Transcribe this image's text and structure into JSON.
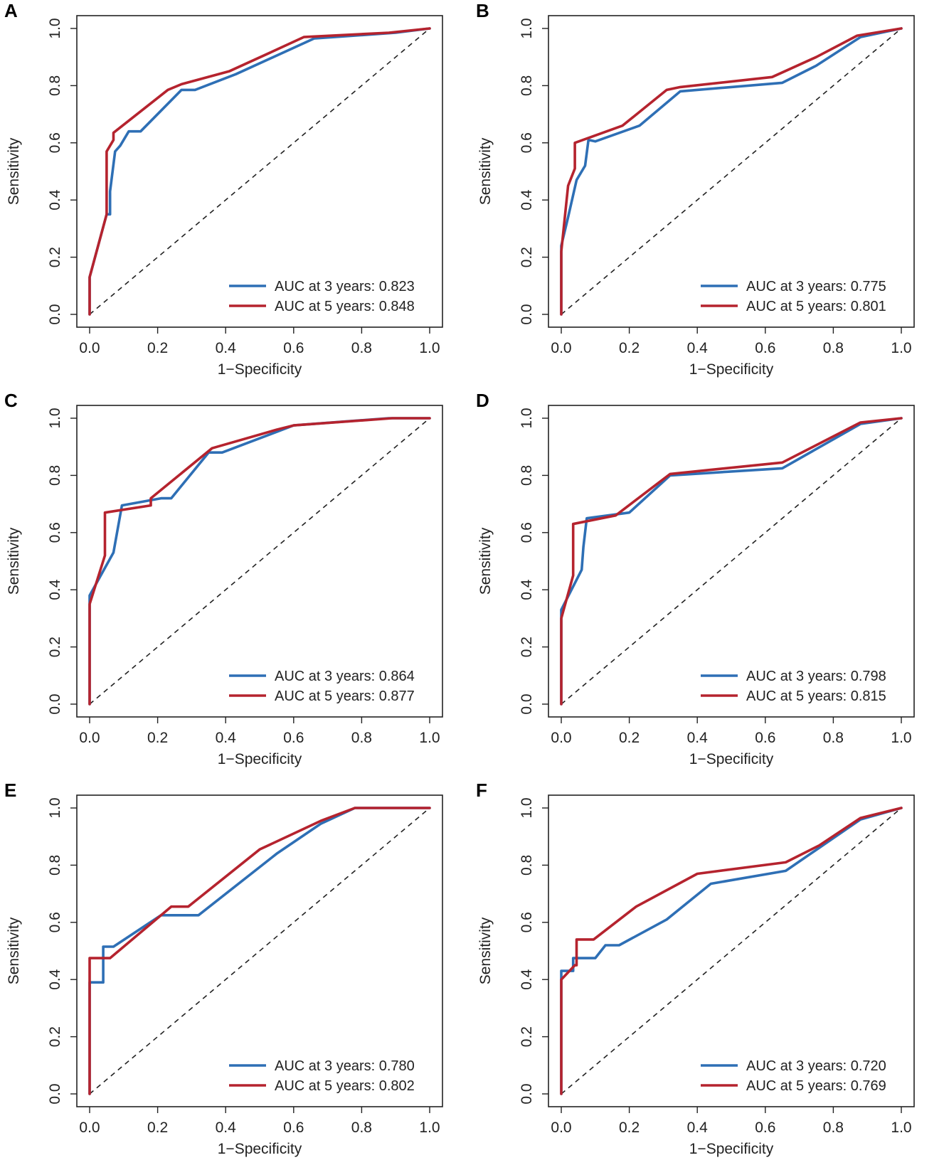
{
  "figure": {
    "panels_count": 6
  },
  "chart_data": [
    {
      "id": "A",
      "label": "A",
      "type": "line",
      "xlabel": "1−Specificity",
      "ylabel": "Sensitivity",
      "xlim": [
        0,
        1
      ],
      "ylim": [
        0,
        1
      ],
      "x_ticks": [
        "0.0",
        "0.2",
        "0.4",
        "0.6",
        "0.8",
        "1.0"
      ],
      "y_ticks": [
        "0.0",
        "0.2",
        "0.4",
        "0.6",
        "0.8",
        "1.0"
      ],
      "reference_line": true,
      "series": [
        {
          "name": "AUC at 3 years: 0.823",
          "color": "#2e6fb5",
          "x": [
            0.0,
            0.0,
            0.05,
            0.06,
            0.06,
            0.075,
            0.09,
            0.115,
            0.15,
            0.27,
            0.31,
            0.43,
            0.66,
            0.9,
            1.0
          ],
          "y": [
            0.0,
            0.13,
            0.35,
            0.35,
            0.43,
            0.57,
            0.59,
            0.64,
            0.64,
            0.785,
            0.785,
            0.84,
            0.965,
            0.985,
            1.0
          ]
        },
        {
          "name": "AUC at 5 years: 0.848",
          "color": "#b5232e",
          "x": [
            0.0,
            0.0,
            0.05,
            0.05,
            0.07,
            0.07,
            0.23,
            0.27,
            0.41,
            0.53,
            0.63,
            0.88,
            1.0
          ],
          "y": [
            0.0,
            0.13,
            0.35,
            0.57,
            0.61,
            0.635,
            0.785,
            0.805,
            0.85,
            0.915,
            0.97,
            0.985,
            1.0
          ]
        }
      ]
    },
    {
      "id": "B",
      "label": "B",
      "type": "line",
      "xlabel": "1−Specificity",
      "ylabel": "Sensitivity",
      "xlim": [
        0,
        1
      ],
      "ylim": [
        0,
        1
      ],
      "x_ticks": [
        "0.0",
        "0.2",
        "0.4",
        "0.6",
        "0.8",
        "1.0"
      ],
      "y_ticks": [
        "0.0",
        "0.2",
        "0.4",
        "0.6",
        "0.8",
        "1.0"
      ],
      "reference_line": true,
      "series": [
        {
          "name": "AUC at 3 years: 0.775",
          "color": "#2e6fb5",
          "x": [
            0.0,
            0.0,
            0.02,
            0.045,
            0.07,
            0.08,
            0.1,
            0.23,
            0.35,
            0.65,
            0.75,
            0.88,
            1.0
          ],
          "y": [
            0.0,
            0.24,
            0.34,
            0.47,
            0.52,
            0.61,
            0.605,
            0.66,
            0.78,
            0.81,
            0.87,
            0.97,
            1.0
          ]
        },
        {
          "name": "AUC at 5 years: 0.801",
          "color": "#b5232e",
          "x": [
            0.0,
            0.0,
            0.02,
            0.04,
            0.04,
            0.18,
            0.31,
            0.35,
            0.62,
            0.75,
            0.87,
            1.0
          ],
          "y": [
            0.0,
            0.22,
            0.45,
            0.51,
            0.6,
            0.66,
            0.785,
            0.795,
            0.83,
            0.9,
            0.975,
            1.0
          ]
        }
      ]
    },
    {
      "id": "C",
      "label": "C",
      "type": "line",
      "xlabel": "1−Specificity",
      "ylabel": "Sensitivity",
      "xlim": [
        0,
        1
      ],
      "ylim": [
        0,
        1
      ],
      "x_ticks": [
        "0.0",
        "0.2",
        "0.4",
        "0.6",
        "0.8",
        "1.0"
      ],
      "y_ticks": [
        "0.0",
        "0.2",
        "0.4",
        "0.6",
        "0.8",
        "1.0"
      ],
      "reference_line": true,
      "series": [
        {
          "name": "AUC at 3 years: 0.864",
          "color": "#2e6fb5",
          "x": [
            0.0,
            0.0,
            0.07,
            0.095,
            0.21,
            0.24,
            0.35,
            0.39,
            0.6,
            0.88,
            1.0
          ],
          "y": [
            0.0,
            0.38,
            0.53,
            0.695,
            0.72,
            0.72,
            0.88,
            0.88,
            0.975,
            1.0,
            1.0
          ]
        },
        {
          "name": "AUC at 5 years: 0.877",
          "color": "#b5232e",
          "x": [
            0.0,
            0.0,
            0.045,
            0.045,
            0.18,
            0.18,
            0.36,
            0.55,
            0.6,
            0.89,
            1.0
          ],
          "y": [
            0.0,
            0.35,
            0.52,
            0.67,
            0.695,
            0.72,
            0.895,
            0.96,
            0.975,
            1.0,
            1.0
          ]
        }
      ]
    },
    {
      "id": "D",
      "label": "D",
      "type": "line",
      "xlabel": "1−Specificity",
      "ylabel": "Sensitivity",
      "xlim": [
        0,
        1
      ],
      "ylim": [
        0,
        1
      ],
      "x_ticks": [
        "0.0",
        "0.2",
        "0.4",
        "0.6",
        "0.8",
        "1.0"
      ],
      "y_ticks": [
        "0.0",
        "0.2",
        "0.4",
        "0.6",
        "0.8",
        "1.0"
      ],
      "reference_line": true,
      "series": [
        {
          "name": "AUC at 3 years: 0.798",
          "color": "#2e6fb5",
          "x": [
            0.0,
            0.0,
            0.06,
            0.065,
            0.075,
            0.2,
            0.32,
            0.65,
            0.88,
            1.0
          ],
          "y": [
            0.0,
            0.33,
            0.47,
            0.55,
            0.65,
            0.67,
            0.8,
            0.825,
            0.98,
            1.0
          ]
        },
        {
          "name": "AUC at 5 years: 0.815",
          "color": "#b5232e",
          "x": [
            0.0,
            0.0,
            0.035,
            0.035,
            0.16,
            0.32,
            0.65,
            0.88,
            1.0
          ],
          "y": [
            0.0,
            0.3,
            0.45,
            0.63,
            0.66,
            0.805,
            0.845,
            0.985,
            1.0
          ]
        }
      ]
    },
    {
      "id": "E",
      "label": "E",
      "type": "line",
      "xlabel": "1−Specificity",
      "ylabel": "Sensitivity",
      "xlim": [
        0,
        1
      ],
      "ylim": [
        0,
        1
      ],
      "x_ticks": [
        "0.0",
        "0.2",
        "0.4",
        "0.6",
        "0.8",
        "1.0"
      ],
      "y_ticks": [
        "0.0",
        "0.2",
        "0.4",
        "0.6",
        "0.8",
        "1.0"
      ],
      "reference_line": true,
      "series": [
        {
          "name": "AUC at 3 years: 0.780",
          "color": "#2e6fb5",
          "x": [
            0.0,
            0.0,
            0.04,
            0.04,
            0.07,
            0.21,
            0.32,
            0.55,
            0.68,
            0.78,
            1.0
          ],
          "y": [
            0.0,
            0.39,
            0.39,
            0.515,
            0.515,
            0.625,
            0.625,
            0.84,
            0.945,
            1.0,
            1.0
          ]
        },
        {
          "name": "AUC at 5 years: 0.802",
          "color": "#b5232e",
          "x": [
            0.0,
            0.0,
            0.06,
            0.24,
            0.29,
            0.5,
            0.68,
            0.78,
            1.0
          ],
          "y": [
            0.0,
            0.475,
            0.475,
            0.655,
            0.655,
            0.855,
            0.955,
            1.0,
            1.0
          ]
        }
      ]
    },
    {
      "id": "F",
      "label": "F",
      "type": "line",
      "xlabel": "1−Specificity",
      "ylabel": "Sensitivity",
      "xlim": [
        0,
        1
      ],
      "ylim": [
        0,
        1
      ],
      "x_ticks": [
        "0.0",
        "0.2",
        "0.4",
        "0.6",
        "0.8",
        "1.0"
      ],
      "y_ticks": [
        "0.0",
        "0.2",
        "0.4",
        "0.6",
        "0.8",
        "1.0"
      ],
      "reference_line": true,
      "series": [
        {
          "name": "AUC at 3 years: 0.720",
          "color": "#2e6fb5",
          "x": [
            0.0,
            0.0,
            0.035,
            0.035,
            0.1,
            0.13,
            0.17,
            0.31,
            0.44,
            0.66,
            0.88,
            1.0
          ],
          "y": [
            0.0,
            0.43,
            0.43,
            0.475,
            0.475,
            0.52,
            0.52,
            0.61,
            0.735,
            0.78,
            0.96,
            1.0
          ]
        },
        {
          "name": "AUC at 5 years: 0.769",
          "color": "#b5232e",
          "x": [
            0.0,
            0.0,
            0.04,
            0.045,
            0.045,
            0.095,
            0.22,
            0.4,
            0.66,
            0.76,
            0.88,
            1.0
          ],
          "y": [
            0.0,
            0.4,
            0.45,
            0.45,
            0.54,
            0.54,
            0.655,
            0.77,
            0.81,
            0.87,
            0.965,
            1.0
          ]
        }
      ]
    }
  ]
}
